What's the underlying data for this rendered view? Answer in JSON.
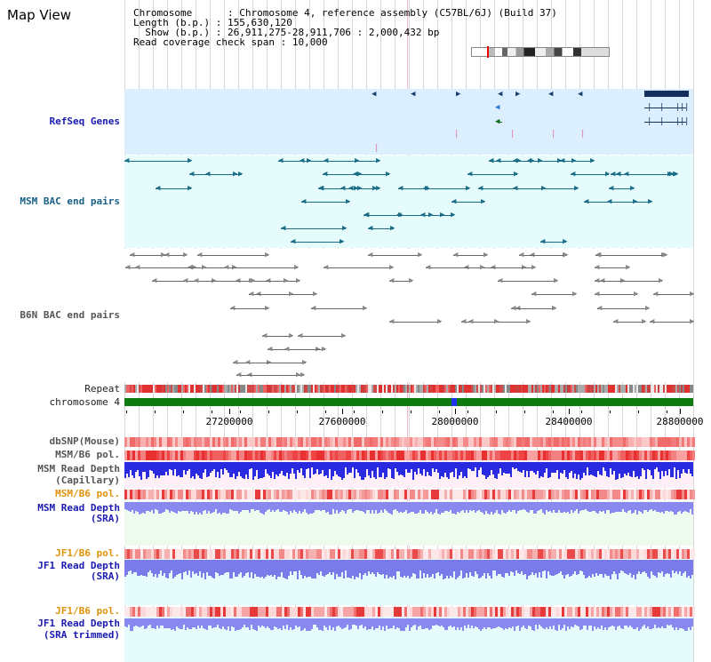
{
  "header": {
    "title": "Map View",
    "chromosome_label": "Chromosome",
    "chromosome_value": "Chromosome 4, reference assembly (C57BL/6J) (Build 37)",
    "length_label": "Length (b.p.)",
    "length_value": "155,630,120",
    "show_label": "Show (b.p.)",
    "show_value": "26,911,275-28,911,706 : 2,000,432 bp",
    "coverage_label": "Read coverage check span",
    "coverage_value": "10,000"
  },
  "tracks": {
    "refseq": "RefSeq Genes",
    "msm_bac": "MSM BAC end pairs",
    "b6n_bac": "B6N BAC end pairs",
    "repeat": "Repeat",
    "chromosome": "chromosome 4",
    "dbsnp": "dbSNP(Mouse)",
    "msm_b6_pol": "MSM/B6 pol.",
    "msm_depth_cap_1": "MSM Read Depth",
    "msm_depth_cap_2": "(Capillary)",
    "msm_b6_pol_2": "MSM/B6 pol.",
    "msm_depth_sra_1": "MSM Read Depth",
    "msm_depth_sra_2": "(SRA)",
    "jf1_b6_pol": "JF1/B6 pol.",
    "jf1_depth_sra_1": "JF1 Read Depth",
    "jf1_depth_sra_2": "(SRA)",
    "jf1_b6_pol_2": "JF1/B6 pol.",
    "jf1_depth_trim_1": "JF1 Read Depth",
    "jf1_depth_trim_2": "(SRA trimmed)"
  },
  "axis": {
    "ticks": [
      "27200000",
      "27600000",
      "28000000",
      "28400000",
      "28800000"
    ]
  },
  "colors": {
    "refseq_bg": "#dcefff",
    "msm_bg": "#e6fbfb",
    "b6n_bg": "#ffffff",
    "repeat": "#e03030",
    "chromosome": "#0f7a0f",
    "depth_blue": "#2a2ae0",
    "depth_light": "#8888ee"
  }
}
